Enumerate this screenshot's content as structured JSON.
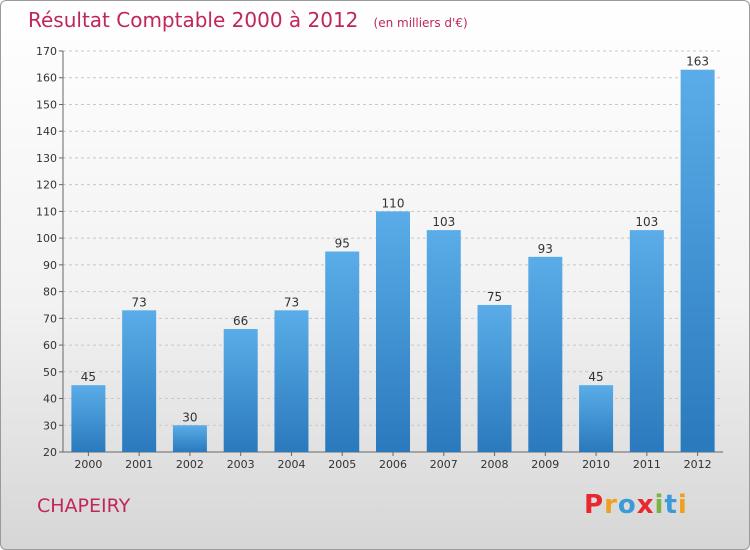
{
  "title": "Résultat Comptable 2000 à 2012",
  "subtitle": "(en milliers d'€)",
  "town": "CHAPEIRY",
  "logo": {
    "letters": [
      "P",
      "r",
      "o",
      "x",
      "i",
      "t",
      "i"
    ],
    "colors": [
      "#e8282e",
      "#f0a020",
      "#3b9bd8",
      "#e8282e",
      "#7cb342",
      "#3b9bd8",
      "#f0a020"
    ]
  },
  "chart_data": {
    "type": "bar",
    "categories": [
      "2000",
      "2001",
      "2002",
      "2003",
      "2004",
      "2005",
      "2006",
      "2007",
      "2008",
      "2009",
      "2010",
      "2011",
      "2012"
    ],
    "values": [
      45,
      73,
      30,
      66,
      73,
      95,
      110,
      103,
      75,
      93,
      45,
      103,
      163
    ],
    "title": "Résultat Comptable 2000 à 2012",
    "subtitle": "(en milliers d'€)",
    "xlabel": "",
    "ylabel": "",
    "ylim": [
      20,
      170
    ],
    "yticks": [
      20,
      30,
      40,
      50,
      60,
      70,
      80,
      90,
      100,
      110,
      120,
      130,
      140,
      150,
      160,
      170
    ],
    "grid": true,
    "bar_color": "#3d8fd6"
  }
}
